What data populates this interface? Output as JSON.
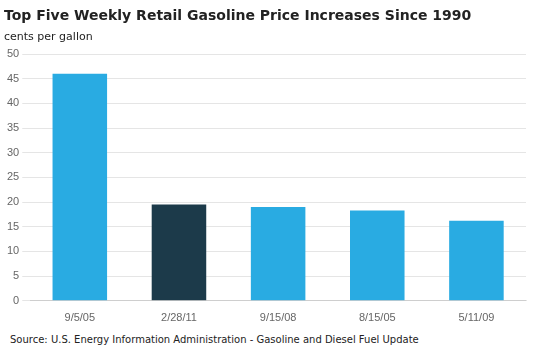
{
  "chart_data": {
    "type": "bar",
    "title": "Top Five Weekly Retail Gasoline Price Increases Since 1990",
    "subtitle": "cents per gallon",
    "annotations": [
      "Source: U.S. Energy Information Administration - Gasoline and Diesel Fuel Update"
    ],
    "categories": [
      "9/5/05",
      "2/28/11",
      "9/15/08",
      "8/15/05",
      "5/11/09"
    ],
    "values": [
      46.0,
      19.5,
      19.0,
      18.3,
      16.2
    ],
    "colors": [
      "#29ABE2",
      "#1C3A4A",
      "#29ABE2",
      "#29ABE2",
      "#29ABE2"
    ],
    "ylim": [
      0,
      50
    ],
    "yticks": [
      0,
      5,
      10,
      15,
      20,
      25,
      30,
      35,
      40,
      45,
      50
    ],
    "grid": true
  }
}
